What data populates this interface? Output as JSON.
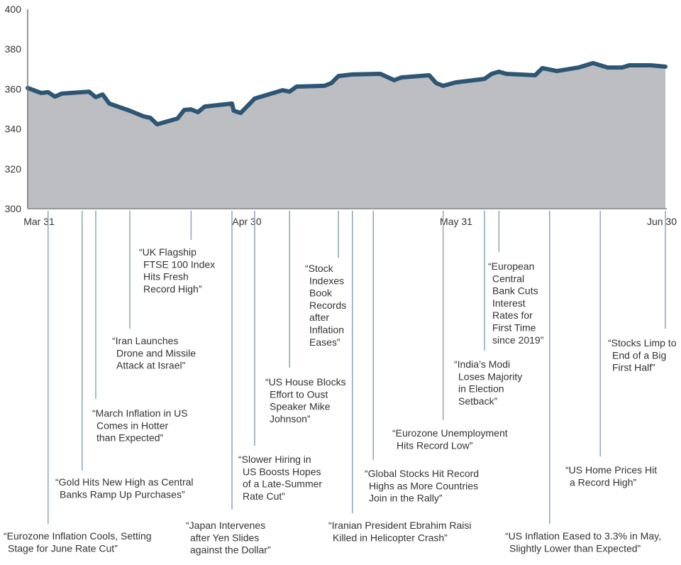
{
  "chart_data": {
    "type": "area",
    "title": "",
    "xlabel": "",
    "ylabel": "",
    "ylim": [
      300,
      400
    ],
    "yticks": [
      "300",
      "320",
      "340",
      "360",
      "380",
      "400"
    ],
    "xticks": [
      "Mar 31",
      "Apr 30",
      "May 31",
      "Jun 30"
    ],
    "grid": false,
    "colors": {
      "line": "#2d5674",
      "fill": "#bcbec1",
      "leader": "#8aa6bb",
      "text": "#333333"
    },
    "points": [
      {
        "x": "Mar 31",
        "y": 360.5
      },
      {
        "x": "Apr 2",
        "y": 358.0
      },
      {
        "x": "Apr 3",
        "y": 358.4
      },
      {
        "x": "Apr 4",
        "y": 356.2
      },
      {
        "x": "Apr 5",
        "y": 357.7
      },
      {
        "x": "Apr 9",
        "y": 358.7
      },
      {
        "x": "Apr 10",
        "y": 355.9
      },
      {
        "x": "Apr 11",
        "y": 357.3
      },
      {
        "x": "Apr 12",
        "y": 352.7
      },
      {
        "x": "Apr 15",
        "y": 349.1
      },
      {
        "x": "Apr 17",
        "y": 346.3
      },
      {
        "x": "Apr 18",
        "y": 345.6
      },
      {
        "x": "Apr 19",
        "y": 342.3
      },
      {
        "x": "Apr 22",
        "y": 345.2
      },
      {
        "x": "Apr 23",
        "y": 349.5
      },
      {
        "x": "Apr 24",
        "y": 349.8
      },
      {
        "x": "Apr 25",
        "y": 348.4
      },
      {
        "x": "Apr 26",
        "y": 351.2
      },
      {
        "x": "Apr 30",
        "y": 352.7
      },
      {
        "x": "May 1",
        "y": 349.1
      },
      {
        "x": "May 2",
        "y": 348.0
      },
      {
        "x": "May 4",
        "y": 355.2
      },
      {
        "x": "May 8",
        "y": 359.4
      },
      {
        "x": "May 9",
        "y": 358.7
      },
      {
        "x": "May 10",
        "y": 361.2
      },
      {
        "x": "May 14",
        "y": 361.6
      },
      {
        "x": "May 15",
        "y": 363.0
      },
      {
        "x": "May 16",
        "y": 366.5
      },
      {
        "x": "May 18",
        "y": 367.3
      },
      {
        "x": "May 22",
        "y": 367.6
      },
      {
        "x": "May 24",
        "y": 364.4
      },
      {
        "x": "May 25",
        "y": 365.8
      },
      {
        "x": "May 29",
        "y": 366.9
      },
      {
        "x": "May 30",
        "y": 363.0
      },
      {
        "x": "May 31",
        "y": 361.6
      },
      {
        "x": "Jun 1",
        "y": 363.3
      },
      {
        "x": "Jun 5",
        "y": 365.1
      },
      {
        "x": "Jun 6",
        "y": 367.6
      },
      {
        "x": "Jun 7",
        "y": 368.7
      },
      {
        "x": "Jun 8",
        "y": 367.6
      },
      {
        "x": "Jun 12",
        "y": 366.9
      },
      {
        "x": "Jun 13",
        "y": 370.5
      },
      {
        "x": "Jun 15",
        "y": 369.0
      },
      {
        "x": "Jun 18",
        "y": 370.8
      },
      {
        "x": "Jun 20",
        "y": 373.0
      },
      {
        "x": "Jun 22",
        "y": 370.8
      },
      {
        "x": "Jun 24",
        "y": 370.8
      },
      {
        "x": "Jun 25",
        "y": 371.9
      },
      {
        "x": "Jun 28",
        "y": 371.9
      },
      {
        "x": "Jun 30",
        "y": 371.2
      }
    ],
    "annotations": [
      {
        "x": "Apr 3",
        "lines": [
          "“Eurozone Inflation Cools, Setting",
          "Stage for June Rate Cut”"
        ]
      },
      {
        "x": "Apr 8",
        "lines": [
          "“Gold Hits New High as Central",
          "Banks Ramp Up Purchases”"
        ]
      },
      {
        "x": "Apr 10",
        "lines": [
          "“March Inflation in US",
          "Comes in Hotter",
          "than Expected”"
        ]
      },
      {
        "x": "Apr 15",
        "lines": [
          "“Iran Launches",
          "Drone and Missile",
          "Attack at Israel”"
        ]
      },
      {
        "x": "Apr 24",
        "lines": [
          "“UK Flagship",
          "FTSE 100 Index",
          "Hits Fresh",
          "Record High”"
        ]
      },
      {
        "x": "Apr 30",
        "lines": [
          "“Japan Intervenes",
          "after Yen Slides",
          "against the Dollar”"
        ]
      },
      {
        "x": "May 4",
        "lines": [
          "“Slower Hiring in",
          "US Boosts Hopes",
          "of a Late-Summer",
          "Rate Cut”"
        ]
      },
      {
        "x": "May 9",
        "lines": [
          "“US House Blocks",
          "Effort to Oust",
          "Speaker Mike",
          "Johnson”"
        ]
      },
      {
        "x": "May 16",
        "lines": [
          "“Stock",
          "Indexes",
          "Book",
          "Records",
          "after",
          "Inflation",
          "Eases”"
        ]
      },
      {
        "x": "May 18",
        "lines": [
          "“Iranian President Ebrahim Raisi",
          "Killed in Helicopter Crash”"
        ]
      },
      {
        "x": "May 21",
        "lines": [
          "“Global Stocks Hit Record",
          "Highs as More Countries",
          "Join in the Rally”"
        ]
      },
      {
        "x": "May 31",
        "lines": [
          "“Eurozone Unemployment",
          "Hits Record Low”"
        ]
      },
      {
        "x": "Jun 5",
        "lines": [
          "“India’s Modi",
          "Loses Majority",
          "in Election",
          "Setback”"
        ]
      },
      {
        "x": "Jun 7",
        "lines": [
          "“European",
          "Central",
          "Bank Cuts",
          "Interest",
          "Rates for",
          "First Time",
          "since 2019”"
        ]
      },
      {
        "x": "Jun 14",
        "lines": [
          "“US Inflation Eased to 3.3% in May,",
          "Slightly Lower than Expected”"
        ]
      },
      {
        "x": "Jun 21",
        "lines": [
          "“US Home Prices Hit",
          "a Record High”"
        ]
      },
      {
        "x": "Jun 30",
        "lines": [
          "“Stocks Limp to",
          "End of a Big",
          "First Half”"
        ]
      }
    ]
  }
}
